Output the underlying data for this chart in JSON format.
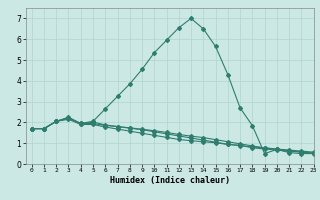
{
  "xlabel": "Humidex (Indice chaleur)",
  "x_ticks": [
    0,
    1,
    2,
    3,
    4,
    5,
    6,
    7,
    8,
    9,
    10,
    11,
    12,
    13,
    14,
    15,
    16,
    17,
    18,
    19,
    20,
    21,
    22,
    23
  ],
  "ylim": [
    0,
    7.5
  ],
  "xlim": [
    -0.5,
    23
  ],
  "background_color": "#cce8e4",
  "grid_color": "#b0d4ce",
  "line_color": "#2e7d6e",
  "series": [
    [
      1.7,
      1.7,
      2.05,
      2.25,
      1.95,
      2.05,
      2.65,
      3.25,
      3.85,
      4.55,
      5.35,
      5.95,
      6.55,
      7.0,
      6.5,
      5.65,
      4.3,
      2.7,
      1.85,
      0.5,
      0.7,
      0.55,
      0.5,
      0.5
    ],
    [
      1.7,
      1.7,
      2.05,
      2.2,
      1.95,
      1.95,
      1.85,
      1.8,
      1.72,
      1.65,
      1.55,
      1.45,
      1.35,
      1.25,
      1.15,
      1.05,
      0.95,
      0.88,
      0.82,
      0.78,
      0.72,
      0.67,
      0.62,
      0.57
    ],
    [
      1.7,
      1.7,
      2.05,
      2.15,
      1.9,
      1.9,
      1.78,
      1.68,
      1.58,
      1.48,
      1.38,
      1.28,
      1.18,
      1.12,
      1.07,
      1.02,
      0.94,
      0.9,
      0.78,
      0.72,
      0.67,
      0.62,
      0.57,
      0.52
    ],
    [
      1.7,
      1.7,
      2.05,
      2.22,
      1.92,
      2.02,
      1.88,
      1.8,
      1.74,
      1.67,
      1.6,
      1.52,
      1.42,
      1.34,
      1.27,
      1.17,
      1.07,
      0.97,
      0.87,
      0.77,
      0.7,
      0.64,
      0.58,
      0.52
    ]
  ]
}
